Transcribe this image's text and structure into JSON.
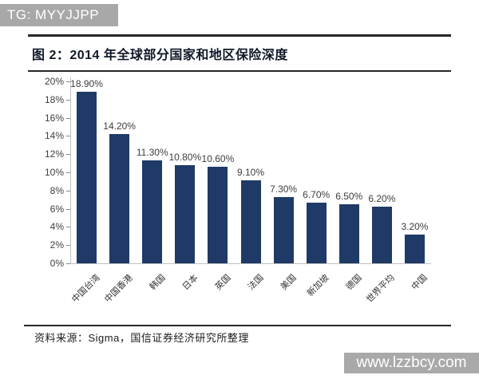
{
  "banner": {
    "text": "TG: MYYJJPP",
    "bg": "#a8a8a8",
    "text_color": "#ffffff"
  },
  "figure": {
    "title": "图 2：2014 年全球部分国家和地区保险深度"
  },
  "source": {
    "text": "资料来源：Sigma，国信证券经济研究所整理"
  },
  "watermark": {
    "text": "www.lzzbcy.com",
    "bg": "#a9a9a9",
    "text_color": "#ffffff"
  },
  "colors": {
    "bar": "#1f3a66",
    "rule": "#26262b",
    "axis_line": "#c0c0c0",
    "tick": "#8a8a8a",
    "label_text": "#3d3d3d"
  },
  "chart_data": {
    "type": "bar",
    "title": "2014 年全球部分国家和地区保险深度",
    "categories": [
      "中国台湾",
      "中国香港",
      "韩国",
      "日本",
      "英国",
      "法国",
      "美国",
      "新加坡",
      "德国",
      "世界平均",
      "中国"
    ],
    "values": [
      18.9,
      14.2,
      11.3,
      10.8,
      10.6,
      9.1,
      7.3,
      6.7,
      6.5,
      6.2,
      3.2
    ],
    "value_labels": [
      "18.90%",
      "14.20%",
      "11.30%",
      "10.80%",
      "10.60%",
      "9.10%",
      "7.30%",
      "6.70%",
      "6.50%",
      "6.20%",
      "3.20%"
    ],
    "xlabel": "",
    "ylabel": "",
    "ylim": [
      0,
      20
    ],
    "ytick_values": [
      0,
      2,
      4,
      6,
      8,
      10,
      12,
      14,
      16,
      18,
      20
    ],
    "ytick_labels": [
      "0%",
      "2%",
      "4%",
      "6%",
      "8%",
      "10%",
      "12%",
      "14%",
      "16%",
      "18%",
      "20%"
    ],
    "grid": false,
    "legend": false,
    "bar_color": "#1f3a66"
  }
}
